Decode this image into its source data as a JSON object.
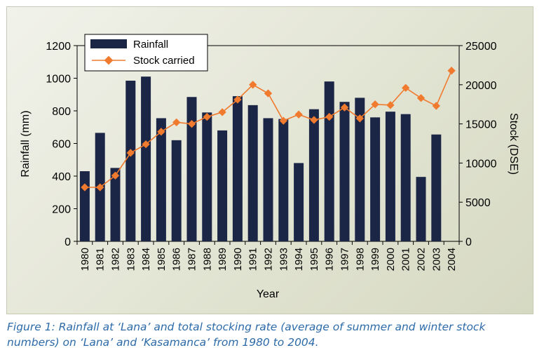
{
  "caption": "Figure 1: Rainfall at ‘Lana’ and total stocking rate (average of summer and winter stock numbers) on ‘Lana’ and ‘Kasamanca’ from 1980 to 2004.",
  "colors": {
    "bar": "#1b2546",
    "line": "#f07a2e",
    "panel": "#e4e6d6"
  },
  "chart_data": {
    "type": "bar+line",
    "xlabel": "Year",
    "ylabel": "Rainfall (mm)",
    "y2label": "Stock (DSE)",
    "categories": [
      "1980",
      "1981",
      "1982",
      "1983",
      "1984",
      "1985",
      "1986",
      "1987",
      "1988",
      "1989",
      "1990",
      "1991",
      "1992",
      "1993",
      "1994",
      "1995",
      "1996",
      "1997",
      "1998",
      "1999",
      "2000",
      "2001",
      "2002",
      "2003",
      "2004"
    ],
    "ylim": [
      0,
      1200
    ],
    "y_ticks": [
      "0",
      "200",
      "400",
      "600",
      "800",
      "1000",
      "1200"
    ],
    "y2lim": [
      0,
      25000
    ],
    "y2_ticks": [
      "0",
      "5000",
      "10000",
      "15000",
      "20000",
      "25000"
    ],
    "legend_position": "top-left",
    "series": [
      {
        "name": "Rainfall",
        "type": "bar",
        "axis": "left",
        "values": [
          430,
          665,
          450,
          985,
          1010,
          755,
          620,
          885,
          790,
          680,
          890,
          835,
          755,
          750,
          480,
          810,
          980,
          855,
          880,
          760,
          795,
          780,
          395,
          655,
          null
        ]
      },
      {
        "name": "Stock carried",
        "type": "line",
        "axis": "right",
        "values": [
          6900,
          6900,
          8400,
          11300,
          12400,
          14000,
          15200,
          15000,
          15900,
          16500,
          18100,
          20000,
          18900,
          15400,
          16200,
          15500,
          15900,
          17100,
          15700,
          17500,
          17400,
          19600,
          18300,
          17300,
          21800
        ]
      }
    ]
  }
}
